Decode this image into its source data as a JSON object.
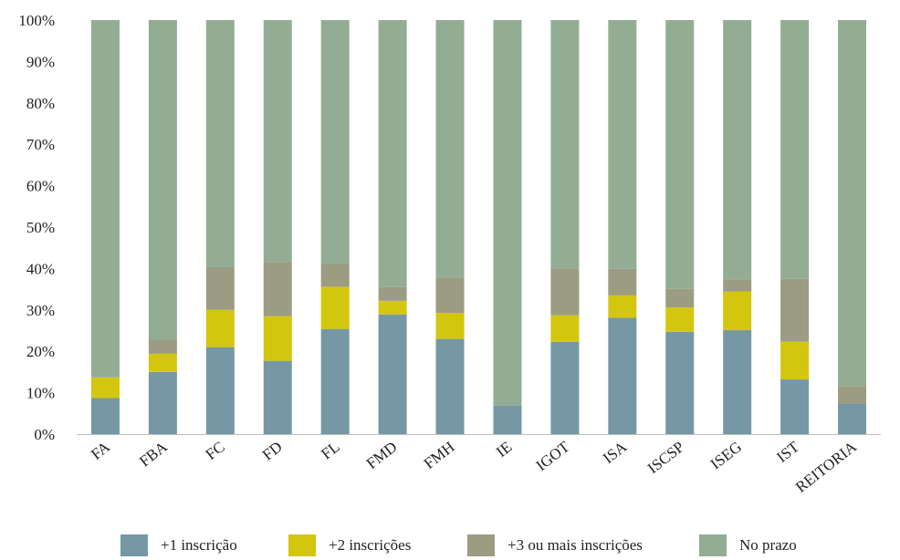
{
  "chart_data": {
    "type": "bar",
    "stacked": true,
    "categories": [
      "FA",
      "FBA",
      "FC",
      "FD",
      "FL",
      "FMD",
      "FMH",
      "IE",
      "IGOT",
      "ISA",
      "ISCSP",
      "ISEG",
      "IST",
      "REITORIA"
    ],
    "series": [
      {
        "name": "+1 inscrição",
        "color": "#7598a4",
        "values": [
          8.7,
          15.0,
          21.0,
          17.7,
          25.4,
          28.9,
          23.0,
          6.9,
          22.3,
          28.1,
          24.7,
          25.1,
          13.2,
          7.4
        ]
      },
      {
        "name": "+2 inscrições",
        "color": "#d3c60f",
        "values": [
          5.0,
          4.4,
          9.0,
          10.8,
          10.2,
          3.3,
          6.3,
          0.0,
          6.4,
          5.4,
          5.9,
          9.3,
          9.1,
          0.0
        ]
      },
      {
        "name": "+3 ou mais inscrições",
        "color": "#9c9c82",
        "values": [
          0.0,
          3.4,
          10.4,
          13.1,
          5.6,
          3.3,
          8.5,
          0.0,
          11.3,
          6.4,
          4.5,
          3.0,
          15.2,
          4.2
        ]
      },
      {
        "name": "No prazo",
        "color": "#92ad94",
        "values": [
          86.3,
          77.2,
          59.6,
          58.4,
          58.8,
          64.5,
          62.2,
          93.1,
          60.0,
          60.1,
          64.9,
          62.6,
          62.5,
          88.4
        ]
      }
    ],
    "yticks": [
      "0%",
      "10%",
      "20%",
      "30%",
      "40%",
      "50%",
      "60%",
      "70%",
      "80%",
      "90%",
      "100%"
    ],
    "ylim": [
      0,
      100
    ],
    "grid": false,
    "legend_position": "bottom"
  }
}
